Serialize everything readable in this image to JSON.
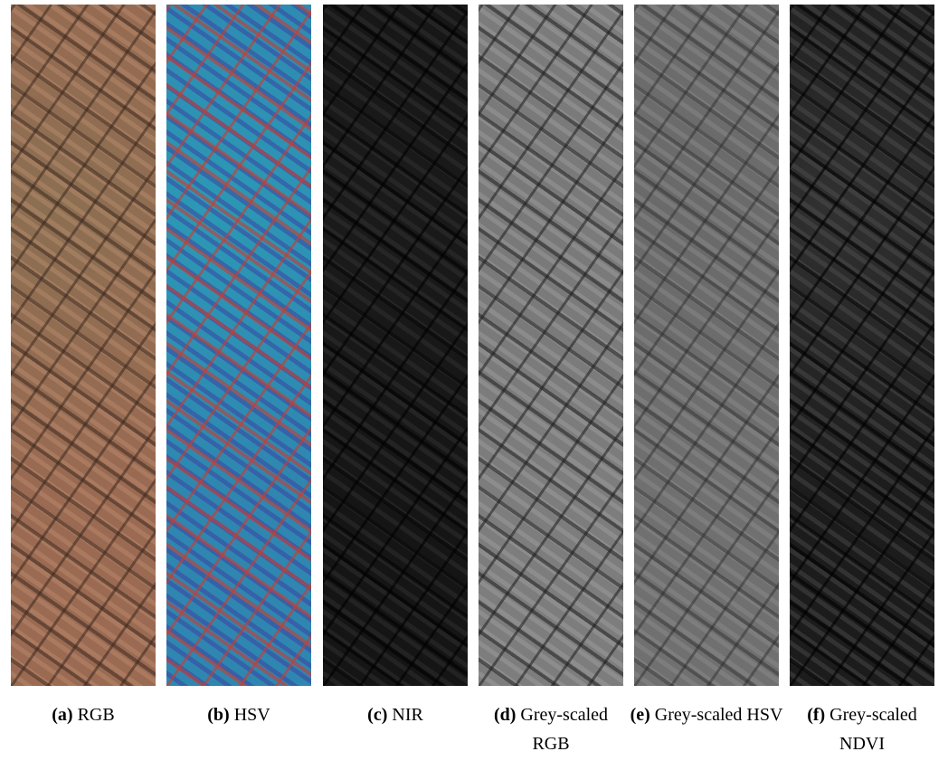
{
  "panels": [
    {
      "label": "(a)",
      "caption": "RGB"
    },
    {
      "label": "(b)",
      "caption": "HSV"
    },
    {
      "label": "(c)",
      "caption": "NIR"
    },
    {
      "label": "(d)",
      "caption": "Grey-scaled RGB"
    },
    {
      "label": "(e)",
      "caption": "Grey-scaled HSV"
    },
    {
      "label": "(f)",
      "caption": "Grey-scaled NDVI"
    }
  ]
}
